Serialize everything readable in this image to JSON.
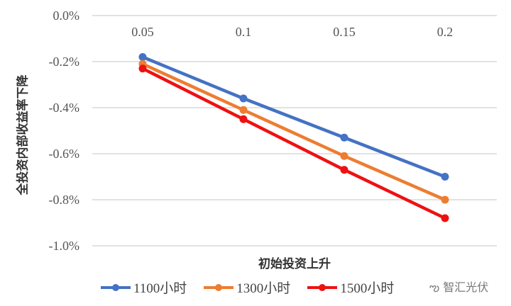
{
  "chart_data": {
    "type": "line",
    "categories": [
      "0.05",
      "0.1",
      "0.15",
      "0.2"
    ],
    "series": [
      {
        "name": "1100小时",
        "color": "#4472C4",
        "values": [
          -0.18,
          -0.36,
          -0.53,
          -0.7
        ]
      },
      {
        "name": "1300小时",
        "color": "#ED7D31",
        "values": [
          -0.21,
          -0.41,
          -0.61,
          -0.8
        ]
      },
      {
        "name": "1500小时",
        "color": "#EE1111",
        "values": [
          -0.23,
          -0.45,
          -0.67,
          -0.88
        ]
      }
    ],
    "yticks": [
      "0.0%",
      "-0.2%",
      "-0.4%",
      "-0.6%",
      "-0.8%",
      "-1.0%"
    ],
    "ylim": [
      -1.0,
      0.0
    ],
    "xlabel": "初始投资上升",
    "ylabel": "全投资内部收益率下降",
    "grid": true,
    "legend": "bottom"
  },
  "watermark": "智汇光伏"
}
